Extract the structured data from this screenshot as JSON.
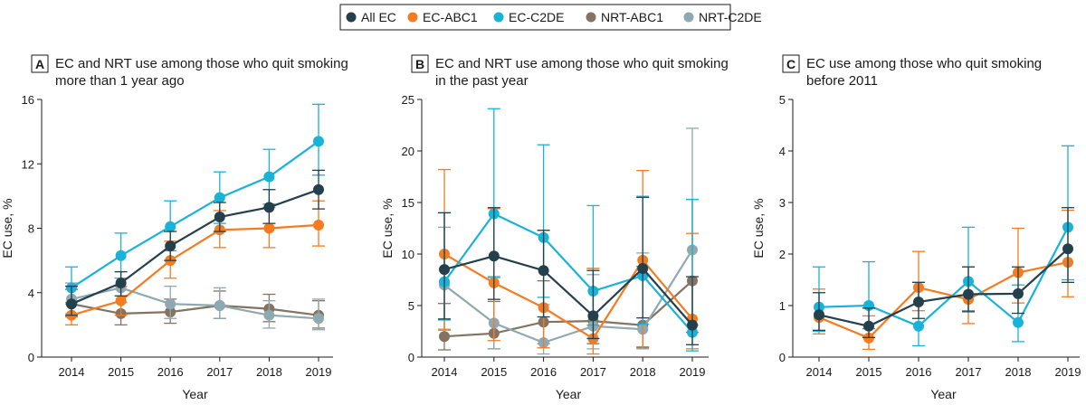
{
  "legend": [
    {
      "name": "All EC",
      "color": "#24404d"
    },
    {
      "name": "EC-ABC1",
      "color": "#f47b20"
    },
    {
      "name": "EC-C2DE",
      "color": "#19b2d8"
    },
    {
      "name": "NRT-ABC1",
      "color": "#857361"
    },
    {
      "name": "NRT-C2DE",
      "color": "#8ea9b1"
    }
  ],
  "chart_data": [
    {
      "type": "line",
      "panel_letter": "A",
      "title": [
        "EC and NRT use among those who quit smoking",
        "more than 1 year ago"
      ],
      "xlabel": "Year",
      "ylabel": "EC use, %",
      "x": [
        2014,
        2015,
        2016,
        2017,
        2018,
        2019
      ],
      "ylim": [
        0,
        16
      ],
      "yticks": [
        0,
        4,
        8,
        12,
        16
      ],
      "series": [
        {
          "name": "All EC",
          "values": [
            3.3,
            4.6,
            6.9,
            8.7,
            9.3,
            10.4
          ],
          "lower": [
            2.6,
            3.8,
            6.0,
            7.8,
            8.3,
            9.2
          ],
          "upper": [
            4.4,
            5.3,
            7.8,
            9.6,
            10.4,
            11.6
          ]
        },
        {
          "name": "EC-ABC1",
          "values": [
            2.6,
            3.5,
            6.0,
            7.9,
            8.0,
            8.2
          ],
          "lower": [
            2.0,
            2.6,
            4.9,
            6.8,
            6.8,
            6.9
          ],
          "upper": [
            3.4,
            4.4,
            7.2,
            9.1,
            9.3,
            9.7
          ]
        },
        {
          "name": "EC-C2DE",
          "values": [
            4.3,
            6.3,
            8.1,
            9.9,
            11.2,
            13.4
          ],
          "lower": [
            3.3,
            4.9,
            6.6,
            8.3,
            9.5,
            11.3
          ],
          "upper": [
            5.6,
            7.7,
            9.7,
            11.5,
            12.9,
            15.7
          ]
        },
        {
          "name": "NRT-ABC1",
          "values": [
            3.3,
            2.7,
            2.8,
            3.2,
            3.0,
            2.6
          ],
          "lower": [
            2.5,
            2.0,
            2.1,
            2.4,
            2.2,
            1.8
          ],
          "upper": [
            4.2,
            3.4,
            3.6,
            4.1,
            3.9,
            3.5
          ]
        },
        {
          "name": "NRT-C2DE",
          "values": [
            3.6,
            4.3,
            3.3,
            3.2,
            2.6,
            2.4
          ],
          "lower": [
            2.7,
            3.4,
            2.4,
            2.4,
            1.8,
            1.7
          ],
          "upper": [
            4.6,
            5.3,
            4.4,
            4.3,
            3.5,
            3.6
          ]
        }
      ]
    },
    {
      "type": "line",
      "panel_letter": "B",
      "title": [
        "EC and NRT use among those who quit smoking",
        "in the past year"
      ],
      "xlabel": "Year",
      "ylabel": "EC use, %",
      "x": [
        2014,
        2015,
        2016,
        2017,
        2018,
        2019
      ],
      "ylim": [
        0,
        25
      ],
      "yticks": [
        0,
        5,
        10,
        15,
        20,
        25
      ],
      "series": [
        {
          "name": "All EC",
          "values": [
            8.5,
            9.8,
            8.4,
            4.0,
            8.6,
            3.1
          ],
          "lower": [
            3.7,
            5.6,
            3.9,
            1.8,
            3.8,
            1.2
          ],
          "upper": [
            14.0,
            14.5,
            12.3,
            8.4,
            15.5,
            7.8
          ]
        },
        {
          "name": "EC-ABC1",
          "values": [
            10.0,
            7.2,
            4.8,
            1.8,
            9.4,
            3.7
          ],
          "lower": [
            2.7,
            1.6,
            0.9,
            0.3,
            1.0,
            0.8
          ],
          "upper": [
            18.2,
            14.4,
            12.3,
            8.6,
            18.1,
            12.0
          ]
        },
        {
          "name": "EC-C2DE",
          "values": [
            7.3,
            13.9,
            11.6,
            6.4,
            7.9,
            2.4
          ],
          "lower": [
            3.6,
            7.8,
            5.8,
            3.1,
            3.2,
            0.6
          ],
          "upper": [
            14.0,
            24.1,
            20.6,
            14.7,
            15.6,
            15.3
          ]
        },
        {
          "name": "NRT-ABC1",
          "values": [
            2.0,
            2.3,
            3.4,
            3.5,
            3.1,
            7.4
          ],
          "lower": [
            0.7,
            0.8,
            1.3,
            1.3,
            0.9,
            2.4
          ],
          "upper": [
            5.2,
            5.4,
            7.4,
            8.6,
            8.8,
            15.3
          ]
        },
        {
          "name": "NRT-C2DE",
          "values": [
            7.0,
            3.3,
            1.4,
            3.0,
            2.7,
            10.4
          ],
          "lower": [
            2.6,
            0.8,
            0.3,
            0.8,
            0.8,
            3.1
          ],
          "upper": [
            12.6,
            7.7,
            5.1,
            8.0,
            10.1,
            22.2
          ]
        }
      ]
    },
    {
      "type": "line",
      "panel_letter": "C",
      "title": [
        "EC use among those who quit smoking",
        "before 2011"
      ],
      "xlabel": "Year",
      "ylabel": "EC use, %",
      "x": [
        2014,
        2015,
        2016,
        2017,
        2018,
        2019
      ],
      "ylim": [
        0,
        5
      ],
      "yticks": [
        0,
        1,
        2,
        3,
        4,
        5
      ],
      "series": [
        {
          "name": "All EC",
          "values": [
            0.82,
            0.6,
            1.07,
            1.22,
            1.23,
            2.1
          ],
          "lower": [
            0.52,
            0.38,
            0.75,
            0.88,
            0.85,
            1.45
          ],
          "upper": [
            1.25,
            0.95,
            1.45,
            1.75,
            1.75,
            2.9
          ]
        },
        {
          "name": "EC-ABC1",
          "values": [
            0.77,
            0.37,
            1.35,
            1.12,
            1.64,
            1.84
          ],
          "lower": [
            0.45,
            0.15,
            0.9,
            0.65,
            1.05,
            1.17
          ],
          "upper": [
            1.32,
            0.8,
            2.05,
            1.75,
            2.5,
            2.85
          ]
        },
        {
          "name": "EC-C2DE",
          "values": [
            0.97,
            1.0,
            0.6,
            1.47,
            0.67,
            2.52
          ],
          "lower": [
            0.5,
            0.55,
            0.22,
            0.9,
            0.3,
            1.5
          ],
          "upper": [
            1.75,
            1.85,
            1.45,
            2.52,
            1.4,
            4.1
          ]
        }
      ]
    }
  ]
}
